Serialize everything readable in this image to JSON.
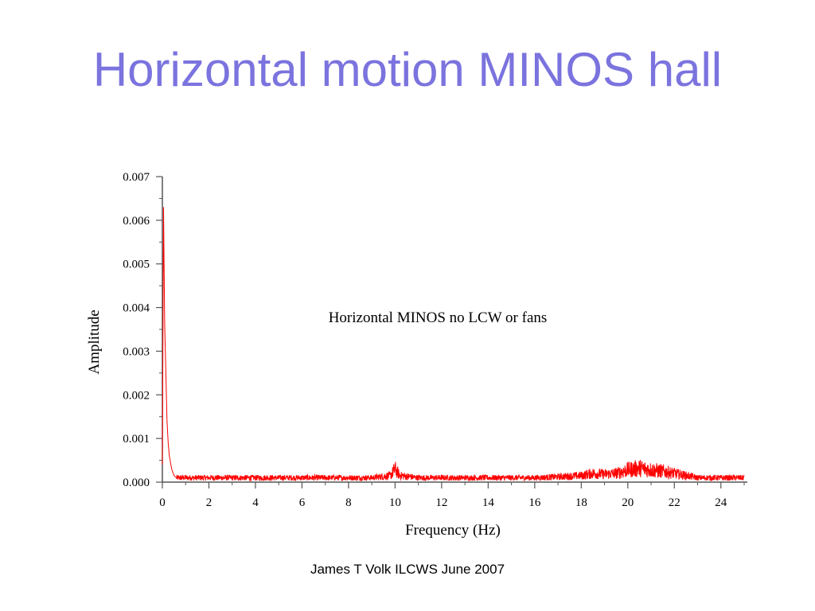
{
  "slide": {
    "title": "Horizontal motion MINOS hall",
    "footer": "James T Volk ILCWS June 2007"
  },
  "chart_data": {
    "type": "line",
    "title": "",
    "xlabel": "Frequency (Hz)",
    "ylabel": "Amplitude",
    "annotation": "Horizontal MINOS no LCW or fans",
    "xlim": [
      0,
      25
    ],
    "ylim": [
      0,
      0.007
    ],
    "x_ticks": [
      0,
      2,
      4,
      6,
      8,
      10,
      12,
      14,
      16,
      18,
      20,
      22,
      24
    ],
    "y_ticks": [
      "0.000",
      "0.001",
      "0.002",
      "0.003",
      "0.004",
      "0.005",
      "0.006",
      "0.007"
    ],
    "grid": false,
    "line_color": "#ff0000",
    "series": [
      {
        "x": [
          0,
          0.05,
          0.1,
          0.15,
          0.2,
          0.25,
          0.3,
          0.4,
          0.5,
          0.6,
          0.8,
          1,
          2,
          3,
          4,
          5,
          6,
          7,
          8,
          9,
          9.8,
          10,
          10.2,
          11,
          12,
          13,
          14,
          15,
          16,
          17,
          18,
          18.5,
          19,
          19.5,
          20,
          20.5,
          21,
          21.5,
          22,
          22.5,
          23,
          24,
          25
        ],
        "y": [
          0.0004,
          0.0063,
          0.0036,
          0.0025,
          0.0014,
          0.0009,
          0.0006,
          0.0003,
          0.00015,
          0.0001,
          0.0001,
          0.0001,
          0.0001,
          0.0001,
          0.0001,
          0.0001,
          0.0001,
          0.0001,
          0.0001,
          0.0001,
          0.00015,
          0.0003,
          0.00015,
          0.0001,
          0.0001,
          0.0001,
          0.0001,
          0.0001,
          0.0001,
          0.00012,
          0.00015,
          0.0002,
          0.00018,
          0.0002,
          0.00028,
          0.00032,
          0.00028,
          0.00025,
          0.0002,
          0.00015,
          0.0001,
          0.0001,
          0.0001
        ]
      }
    ]
  }
}
